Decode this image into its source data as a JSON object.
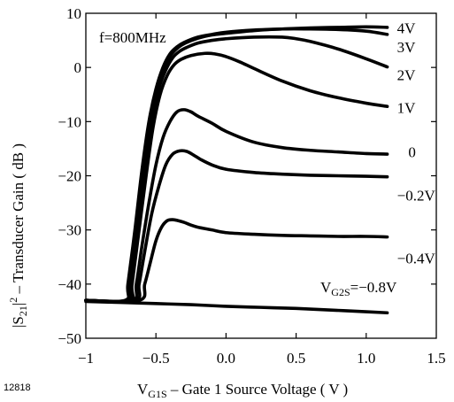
{
  "chart_data": {
    "type": "line",
    "title": "",
    "xlabel": {
      "prefix": "V",
      "sub": "G1S",
      "rest": " – Gate 1 Source Voltage ( V )"
    },
    "ylabel": {
      "prefix": "|S",
      "sub": "21",
      "mid": "|",
      "sup": "2",
      "rest": " – Transducer Gain ( dB )"
    },
    "xlim": [
      -1,
      1.5
    ],
    "ylim": [
      -50,
      10
    ],
    "x_ticks": [
      -1,
      -0.5,
      0,
      0.5,
      1,
      1.5
    ],
    "x_tick_labels": [
      "−1",
      "−0.5",
      "0.0",
      "0.5",
      "1.0",
      "1.5"
    ],
    "y_ticks": [
      -50,
      -40,
      -30,
      -20,
      -10,
      0,
      10
    ],
    "y_tick_labels": [
      "−50",
      "−40",
      "−30",
      "−20",
      "−10",
      "0",
      "10"
    ],
    "annotation": "f=800MHz",
    "figure_id": "12818",
    "parameter_label": {
      "prefix": "V",
      "sub": "G2S",
      "rest": "=−0.8V"
    },
    "series": [
      {
        "name": "4V",
        "x": [
          -0.72,
          -0.7,
          -0.65,
          -0.6,
          -0.55,
          -0.5,
          -0.45,
          -0.4,
          -0.35,
          -0.3,
          -0.2,
          -0.1,
          0,
          0.2,
          0.4,
          0.6,
          0.8,
          1.0,
          1.15
        ],
        "y": [
          -43,
          -40,
          -30,
          -19,
          -10,
          -4,
          0,
          2.5,
          3.8,
          4.6,
          5.6,
          6.1,
          6.5,
          6.9,
          7.1,
          7.3,
          7.4,
          7.5,
          7.4
        ]
      },
      {
        "name": "3V",
        "x": [
          -0.71,
          -0.69,
          -0.64,
          -0.59,
          -0.54,
          -0.49,
          -0.44,
          -0.39,
          -0.34,
          -0.29,
          -0.2,
          -0.1,
          0,
          0.2,
          0.4,
          0.6,
          0.8,
          1.0,
          1.15
        ],
        "y": [
          -43,
          -40,
          -30,
          -19,
          -10,
          -4,
          0,
          2.4,
          3.7,
          4.5,
          5.4,
          6,
          6.3,
          6.8,
          7.1,
          7.1,
          7,
          6.7,
          6.1
        ]
      },
      {
        "name": "2V",
        "x": [
          -0.7,
          -0.68,
          -0.63,
          -0.58,
          -0.53,
          -0.48,
          -0.43,
          -0.38,
          -0.33,
          -0.28,
          -0.2,
          -0.1,
          0,
          0.2,
          0.4,
          0.5,
          0.6,
          0.8,
          1.0,
          1.15
        ],
        "y": [
          -43,
          -40,
          -30,
          -19,
          -10,
          -4,
          -0.5,
          1.8,
          3,
          3.7,
          4.5,
          5,
          5.3,
          5.6,
          5.6,
          5.3,
          4.8,
          3.4,
          1.6,
          0.1
        ]
      },
      {
        "name": "1V",
        "x": [
          -0.69,
          -0.67,
          -0.62,
          -0.57,
          -0.52,
          -0.47,
          -0.42,
          -0.37,
          -0.32,
          -0.25,
          -0.15,
          -0.08,
          0,
          0.1,
          0.2,
          0.4,
          0.6,
          0.8,
          1.0,
          1.15
        ],
        "y": [
          -43,
          -40,
          -30,
          -20,
          -11,
          -5,
          -1.5,
          0.5,
          1.5,
          2.2,
          2.6,
          2.5,
          2,
          1,
          -0.2,
          -2.5,
          -4.3,
          -5.6,
          -6.6,
          -7.2
        ]
      },
      {
        "name": "0",
        "x": [
          -0.67,
          -0.64,
          -0.6,
          -0.55,
          -0.5,
          -0.45,
          -0.4,
          -0.35,
          -0.3,
          -0.25,
          -0.2,
          -0.1,
          0,
          0.2,
          0.4,
          0.6,
          0.8,
          1.0,
          1.15
        ],
        "y": [
          -43,
          -40,
          -33,
          -25,
          -18,
          -13,
          -10,
          -8.2,
          -7.8,
          -8.2,
          -9,
          -10.3,
          -11.8,
          -13.8,
          -14.8,
          -15.3,
          -15.6,
          -15.9,
          -16
        ]
      },
      {
        "name": "−0.2V",
        "x": [
          -0.65,
          -0.62,
          -0.58,
          -0.53,
          -0.48,
          -0.43,
          -0.38,
          -0.33,
          -0.28,
          -0.23,
          -0.18,
          -0.1,
          0,
          0.2,
          0.4,
          0.6,
          0.8,
          1.0,
          1.15
        ],
        "y": [
          -43,
          -40,
          -34,
          -27,
          -22,
          -18,
          -16,
          -15.4,
          -15.5,
          -16.2,
          -17,
          -18,
          -18.8,
          -19.4,
          -19.7,
          -19.9,
          -20,
          -20.1,
          -20.2
        ]
      },
      {
        "name": "−0.4V",
        "x": [
          -0.62,
          -0.58,
          -0.54,
          -0.5,
          -0.46,
          -0.42,
          -0.38,
          -0.34,
          -0.3,
          -0.25,
          -0.2,
          -0.1,
          0,
          0.2,
          0.4,
          0.6,
          0.8,
          1.0,
          1.15
        ],
        "y": [
          -43,
          -40,
          -36,
          -32,
          -29.5,
          -28.3,
          -28.1,
          -28.3,
          -28.6,
          -29.1,
          -29.5,
          -30,
          -30.5,
          -30.8,
          -31,
          -31.1,
          -31.2,
          -31.2,
          -31.3
        ]
      },
      {
        "name": "−0.8V",
        "x": [
          -1.0,
          -0.75,
          -0.5,
          -0.25,
          0,
          0.25,
          0.5,
          0.75,
          1.0,
          1.15
        ],
        "y": [
          -43.2,
          -43.4,
          -43.6,
          -43.8,
          -44.1,
          -44.3,
          -44.5,
          -44.8,
          -45.1,
          -45.3
        ]
      }
    ],
    "curve_labels": [
      {
        "text": "4V",
        "x": 1.22,
        "y": 7.3
      },
      {
        "text": "3V",
        "x": 1.22,
        "y": 3.8
      },
      {
        "text": "2V",
        "x": 1.22,
        "y": -1.4
      },
      {
        "text": "1V",
        "x": 1.22,
        "y": -7.4
      },
      {
        "text": "0",
        "x": 1.3,
        "y": -15.6
      },
      {
        "text": "−0.2V",
        "x": 1.22,
        "y": -23.6
      },
      {
        "text": "−0.4V",
        "x": 1.22,
        "y": -35.2
      }
    ],
    "grid": false,
    "colors": {
      "line": "#000000",
      "axis": "#000000",
      "background": "#ffffff"
    }
  }
}
